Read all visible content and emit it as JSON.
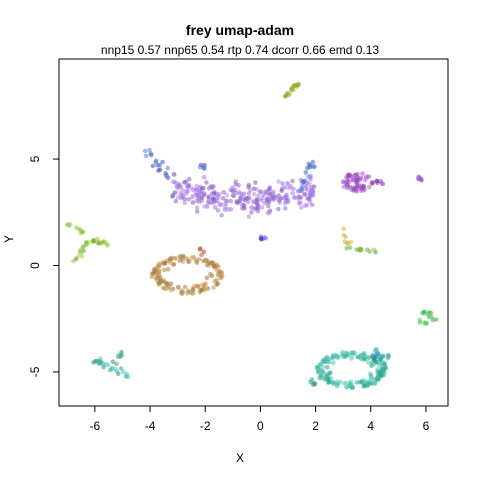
{
  "chart_data": {
    "type": "scatter",
    "title": "frey umap-adam",
    "subtitle": "nnp15 0.57 nnp65 0.54 rtp 0.74 dcorr 0.66 emd 0.13",
    "xlabel": "X",
    "ylabel": "Y",
    "xlim": [
      -7.3,
      6.8
    ],
    "ylim": [
      -6.6,
      9.7
    ],
    "x_ticks": [
      -6,
      -4,
      -2,
      0,
      2,
      4,
      6
    ],
    "y_ticks": [
      -5,
      0,
      5
    ],
    "x_tick_labels": [
      "-6",
      "-4",
      "-2",
      "0",
      "2",
      "4",
      "6"
    ],
    "y_tick_labels": [
      "-5",
      "0",
      "5"
    ],
    "grid": false,
    "legend": "none",
    "clusters": [
      {
        "kind": "segment",
        "from": [
          0.8,
          7.8
        ],
        "to": [
          1.4,
          8.6
        ],
        "n": 16,
        "spread": 0.04,
        "color": "#9aab2e"
      },
      {
        "kind": "band",
        "x": [
          -3.2,
          2.0
        ],
        "y_center": 3.1,
        "curve": 0.55,
        "half": 0.55,
        "n": 260,
        "color": "#9a6ed8"
      },
      {
        "kind": "segment",
        "from": [
          -4.2,
          5.4
        ],
        "to": [
          -3.3,
          4.1
        ],
        "n": 18,
        "spread": 0.08,
        "color": "#4e6ed0"
      },
      {
        "kind": "segment",
        "from": [
          1.9,
          4.9
        ],
        "to": [
          1.5,
          3.6
        ],
        "n": 16,
        "spread": 0.08,
        "color": "#4f7ad0"
      },
      {
        "kind": "segment",
        "from": [
          -2.3,
          4.7
        ],
        "to": [
          -2.0,
          4.6
        ],
        "n": 6,
        "spread": 0.05,
        "color": "#5a6ad0"
      },
      {
        "kind": "blob",
        "center": [
          3.5,
          3.9
        ],
        "rx": 0.6,
        "ry": 0.45,
        "n": 60,
        "color": "#a24fc6"
      },
      {
        "kind": "segment",
        "from": [
          4.2,
          4.0
        ],
        "to": [
          4.5,
          3.8
        ],
        "n": 6,
        "spread": 0.05,
        "color": "#a24fc6"
      },
      {
        "kind": "segment",
        "from": [
          5.7,
          4.1
        ],
        "to": [
          5.9,
          4.0
        ],
        "n": 6,
        "spread": 0.04,
        "color": "#8e48c2"
      },
      {
        "kind": "segment",
        "from": [
          0.0,
          1.2
        ],
        "to": [
          0.2,
          1.4
        ],
        "n": 6,
        "spread": 0.04,
        "color": "#6a4fc6"
      },
      {
        "kind": "segment",
        "from": [
          -2.2,
          0.8
        ],
        "to": [
          -2.1,
          0.6
        ],
        "n": 5,
        "spread": 0.04,
        "color": "#c25a3e"
      },
      {
        "kind": "ring",
        "center": [
          -2.65,
          -0.45
        ],
        "rx": 1.3,
        "ry": 0.9,
        "n": 140,
        "color": "#b88a4a"
      },
      {
        "kind": "segment",
        "from": [
          -7.0,
          2.0
        ],
        "to": [
          -6.4,
          1.5
        ],
        "n": 10,
        "spread": 0.05,
        "color": "#8fc23e"
      },
      {
        "kind": "segment",
        "from": [
          -6.8,
          0.1
        ],
        "to": [
          -6.2,
          1.2
        ],
        "n": 14,
        "spread": 0.05,
        "color": "#8fc23e"
      },
      {
        "kind": "segment",
        "from": [
          -6.2,
          1.2
        ],
        "to": [
          -5.5,
          1.0
        ],
        "n": 12,
        "spread": 0.06,
        "color": "#8fc23e"
      },
      {
        "kind": "segment",
        "from": [
          2.9,
          1.8
        ],
        "to": [
          3.2,
          0.9
        ],
        "n": 8,
        "spread": 0.05,
        "color": "#c0a03e"
      },
      {
        "kind": "segment",
        "from": [
          3.1,
          0.8
        ],
        "to": [
          4.1,
          0.7
        ],
        "n": 12,
        "spread": 0.06,
        "color": "#7ab840"
      },
      {
        "kind": "segment",
        "from": [
          5.9,
          -2.1
        ],
        "to": [
          6.3,
          -2.6
        ],
        "n": 12,
        "spread": 0.06,
        "color": "#4fbf58"
      },
      {
        "kind": "segment",
        "from": [
          5.8,
          -2.6
        ],
        "to": [
          6.1,
          -2.8
        ],
        "n": 6,
        "spread": 0.05,
        "color": "#4fbf58"
      },
      {
        "kind": "segment",
        "from": [
          -6.1,
          -4.5
        ],
        "to": [
          -5.2,
          -4.6
        ],
        "n": 14,
        "spread": 0.06,
        "color": "#3fae80"
      },
      {
        "kind": "segment",
        "from": [
          -5.6,
          -4.7
        ],
        "to": [
          -4.8,
          -5.2
        ],
        "n": 14,
        "spread": 0.07,
        "color": "#3aaea8"
      },
      {
        "kind": "segment",
        "from": [
          -5.2,
          -4.3
        ],
        "to": [
          -5.0,
          -4.1
        ],
        "n": 5,
        "spread": 0.05,
        "color": "#3fae80"
      },
      {
        "kind": "ring",
        "center": [
          3.3,
          -4.9
        ],
        "rx": 1.3,
        "ry": 0.85,
        "n": 170,
        "color": "#3fb9a0"
      },
      {
        "kind": "blob",
        "center": [
          4.3,
          -4.2
        ],
        "rx": 0.4,
        "ry": 0.3,
        "n": 20,
        "color": "#3a9fb0"
      },
      {
        "kind": "segment",
        "from": [
          1.8,
          -5.3
        ],
        "to": [
          2.0,
          -5.6
        ],
        "n": 5,
        "spread": 0.05,
        "color": "#3fae80"
      }
    ]
  }
}
